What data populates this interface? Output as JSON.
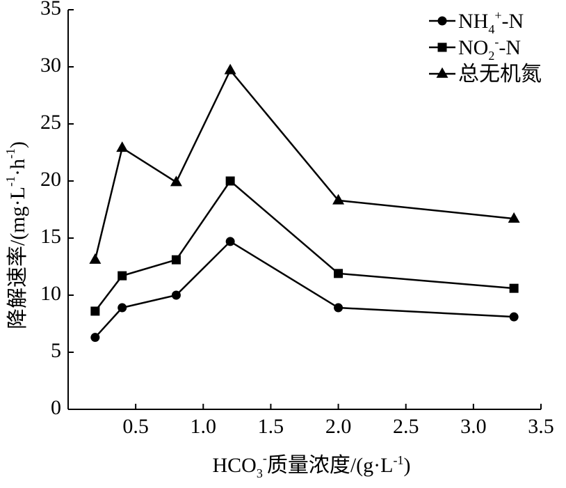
{
  "chart_data": {
    "type": "line",
    "x": [
      0.2,
      0.4,
      0.8,
      1.2,
      2.0,
      3.3
    ],
    "series": [
      {
        "name": "NH4+-N",
        "marker": "circle",
        "values": [
          6.3,
          8.9,
          10.0,
          14.7,
          8.9,
          8.1
        ]
      },
      {
        "name": "NO2--N",
        "marker": "square",
        "values": [
          8.6,
          11.7,
          13.1,
          20.0,
          11.9,
          10.6
        ]
      },
      {
        "name": "总无机氮",
        "marker": "triangle",
        "values": [
          13.1,
          22.9,
          19.9,
          29.7,
          18.3,
          16.7
        ]
      }
    ],
    "xlim": [
      0,
      3.5
    ],
    "ylim": [
      0,
      35
    ],
    "xticks": [
      0.5,
      1.0,
      1.5,
      2.0,
      2.5,
      3.0,
      3.5
    ],
    "xtick_labels": [
      "0.5",
      "1.0",
      "1.5",
      "2.0",
      "2.5",
      "3.0",
      "3.5"
    ],
    "yticks": [
      0,
      5,
      10,
      15,
      20,
      25,
      30,
      35
    ],
    "ytick_labels": [
      "0",
      "5",
      "10",
      "15",
      "20",
      "25",
      "30",
      "35"
    ],
    "xlabel": {
      "pre": "HCO",
      "sub": "3",
      "sup": "-",
      "mid": "质量浓度/(g·L",
      "sup2": "-1",
      "post": ")"
    },
    "ylabel": {
      "pre": "降解速率/(mg·L",
      "sup1": "-1",
      "mid": "·h",
      "sup2": "-1",
      "post": ")"
    },
    "legend": {
      "position": "top-right",
      "entries": [
        {
          "base": "NH",
          "sub": "4",
          "sup": "+",
          "tail": "-N",
          "marker": "circle"
        },
        {
          "base": "NO",
          "sub": "2",
          "sup": "-",
          "tail": "-N",
          "marker": "square"
        },
        {
          "base": "总无机氮",
          "sub": "",
          "sup": "",
          "tail": "",
          "marker": "triangle"
        }
      ]
    },
    "grid": false,
    "colors": {
      "line": "#000000",
      "marker": "#000000",
      "background": "#ffffff"
    }
  }
}
